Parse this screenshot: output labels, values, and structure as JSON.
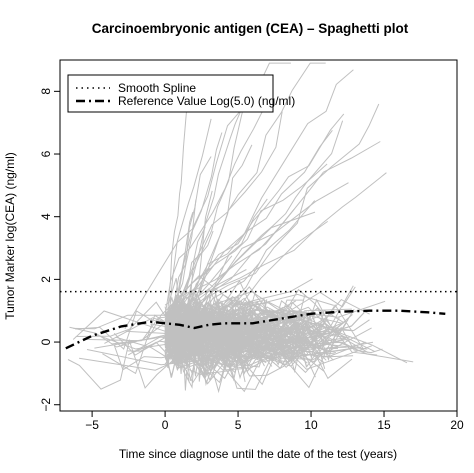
{
  "chart_data": {
    "type": "line",
    "title": "Carcinoembryonic antigen (CEA) – Spaghetti plot",
    "xlabel": "Time since diagnose until the date of the test (years)",
    "ylabel": "Tumor Marker log(CEA) (ng/ml)",
    "xlim": [
      -7.2,
      20
    ],
    "ylim": [
      -2.2,
      9
    ],
    "xticks": [
      -5,
      0,
      5,
      10,
      15,
      20
    ],
    "yticks": [
      -2,
      0,
      2,
      4,
      6,
      8
    ],
    "grid": false,
    "legend_position": "top-left",
    "legend": [
      {
        "label": "Smooth Spline",
        "style": "dotdash"
      },
      {
        "label": "Reference Value Log(5.0) (ng/ml)",
        "style": "dotted"
      }
    ],
    "reference_line": {
      "y": 1.61
    },
    "smooth_spline": {
      "x": [
        -6.8,
        -5,
        -3,
        -1,
        0,
        1,
        2,
        3,
        4,
        6,
        8,
        10,
        12,
        14,
        16,
        18,
        19.2
      ],
      "y": [
        -0.2,
        0.2,
        0.5,
        0.65,
        0.6,
        0.55,
        0.45,
        0.55,
        0.6,
        0.6,
        0.75,
        0.9,
        0.97,
        1.0,
        1.0,
        0.95,
        0.9
      ]
    },
    "series_color": "#c0c0c0",
    "subject_lines_count": 300
  }
}
